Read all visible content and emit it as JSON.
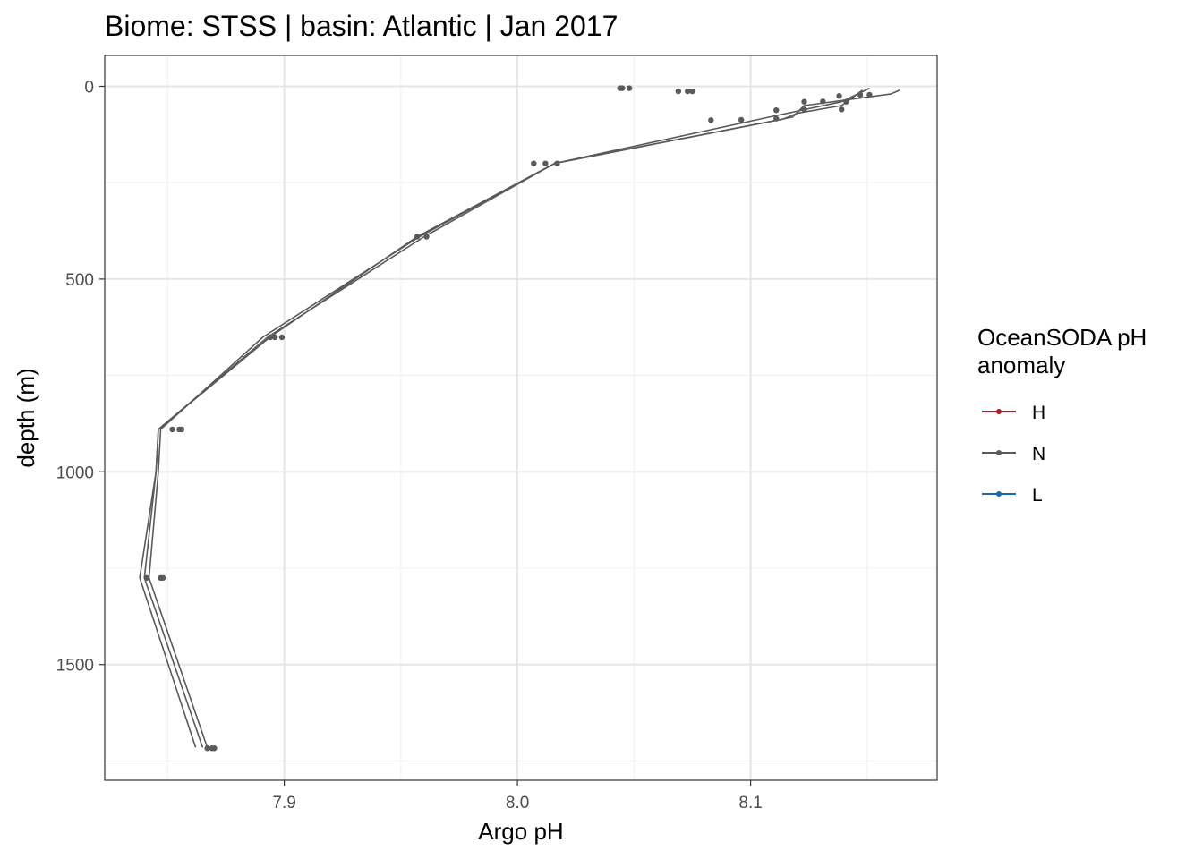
{
  "chart_data": {
    "type": "line",
    "title": "Biome: STSS | basin: Atlantic  | Jan 2017",
    "xlabel": "Argo pH",
    "ylabel": "depth (m)",
    "xlim": [
      7.823,
      8.18
    ],
    "ylim": [
      1800,
      -80
    ],
    "y_reversed": true,
    "x_ticks": [
      7.9,
      8.0,
      8.1
    ],
    "x_tick_labels": [
      "7.9",
      "8.0",
      "8.1"
    ],
    "y_ticks": [
      0,
      500,
      1000,
      1500
    ],
    "y_tick_labels": [
      "0",
      "500",
      "1000",
      "1500"
    ],
    "grid": true,
    "legend": {
      "title_lines": [
        "OceanSODA pH",
        "anomaly"
      ],
      "position": "right",
      "items": [
        {
          "label": "H",
          "color": "#b2182b"
        },
        {
          "label": "N",
          "color": "#5a5a5a"
        },
        {
          "label": "L",
          "color": "#2166ac"
        }
      ]
    },
    "series": [
      {
        "legend_key": "N",
        "color": "#5a5a5a",
        "lines": [
          [
            [
              8.164,
              10
            ],
            [
              8.16,
              20
            ],
            [
              8.123,
              50
            ],
            [
              8.118,
              80
            ],
            [
              8.016,
              200
            ],
            [
              7.958,
              390
            ],
            [
              7.891,
              650
            ],
            [
              7.847,
              890
            ],
            [
              7.846,
              1000
            ],
            [
              7.842,
              1275
            ],
            [
              7.867,
              1715
            ]
          ],
          [
            [
              8.148,
              10
            ],
            [
              8.139,
              50
            ],
            [
              8.12,
              70
            ],
            [
              8.114,
              85
            ],
            [
              8.016,
              200
            ],
            [
              7.96,
              390
            ],
            [
              7.893,
              650
            ],
            [
              7.846,
              890
            ],
            [
              7.845,
              1000
            ],
            [
              7.838,
              1275
            ],
            [
              7.862,
              1715
            ]
          ],
          [
            [
              8.151,
              5
            ],
            [
              8.139,
              40
            ],
            [
              8.108,
              80
            ],
            [
              8.016,
              200
            ],
            [
              7.957,
              390
            ],
            [
              7.894,
              650
            ],
            [
              7.846,
              890
            ],
            [
              7.845,
              1000
            ],
            [
              7.84,
              1275
            ],
            [
              7.865,
              1715
            ]
          ]
        ],
        "points": [
          [
            8.044,
            5
          ],
          [
            8.045,
            5
          ],
          [
            8.048,
            5
          ],
          [
            8.069,
            13
          ],
          [
            8.073,
            13
          ],
          [
            8.075,
            13
          ],
          [
            8.083,
            88
          ],
          [
            8.096,
            87
          ],
          [
            8.111,
            84
          ],
          [
            8.111,
            62
          ],
          [
            8.123,
            40
          ],
          [
            8.123,
            60
          ],
          [
            8.131,
            39
          ],
          [
            8.138,
            25
          ],
          [
            8.139,
            60
          ],
          [
            8.141,
            40
          ],
          [
            8.147,
            22
          ],
          [
            8.151,
            22
          ],
          [
            8.007,
            200
          ],
          [
            8.012,
            200
          ],
          [
            8.017,
            200
          ],
          [
            7.957,
            390
          ],
          [
            7.961,
            390
          ],
          [
            7.894,
            651
          ],
          [
            7.896,
            651
          ],
          [
            7.899,
            651
          ],
          [
            7.852,
            890
          ],
          [
            7.855,
            890
          ],
          [
            7.856,
            890
          ],
          [
            7.841,
            1275
          ],
          [
            7.847,
            1275
          ],
          [
            7.848,
            1275
          ],
          [
            7.867,
            1717
          ],
          [
            7.869,
            1717
          ],
          [
            7.87,
            1717
          ]
        ]
      }
    ]
  }
}
